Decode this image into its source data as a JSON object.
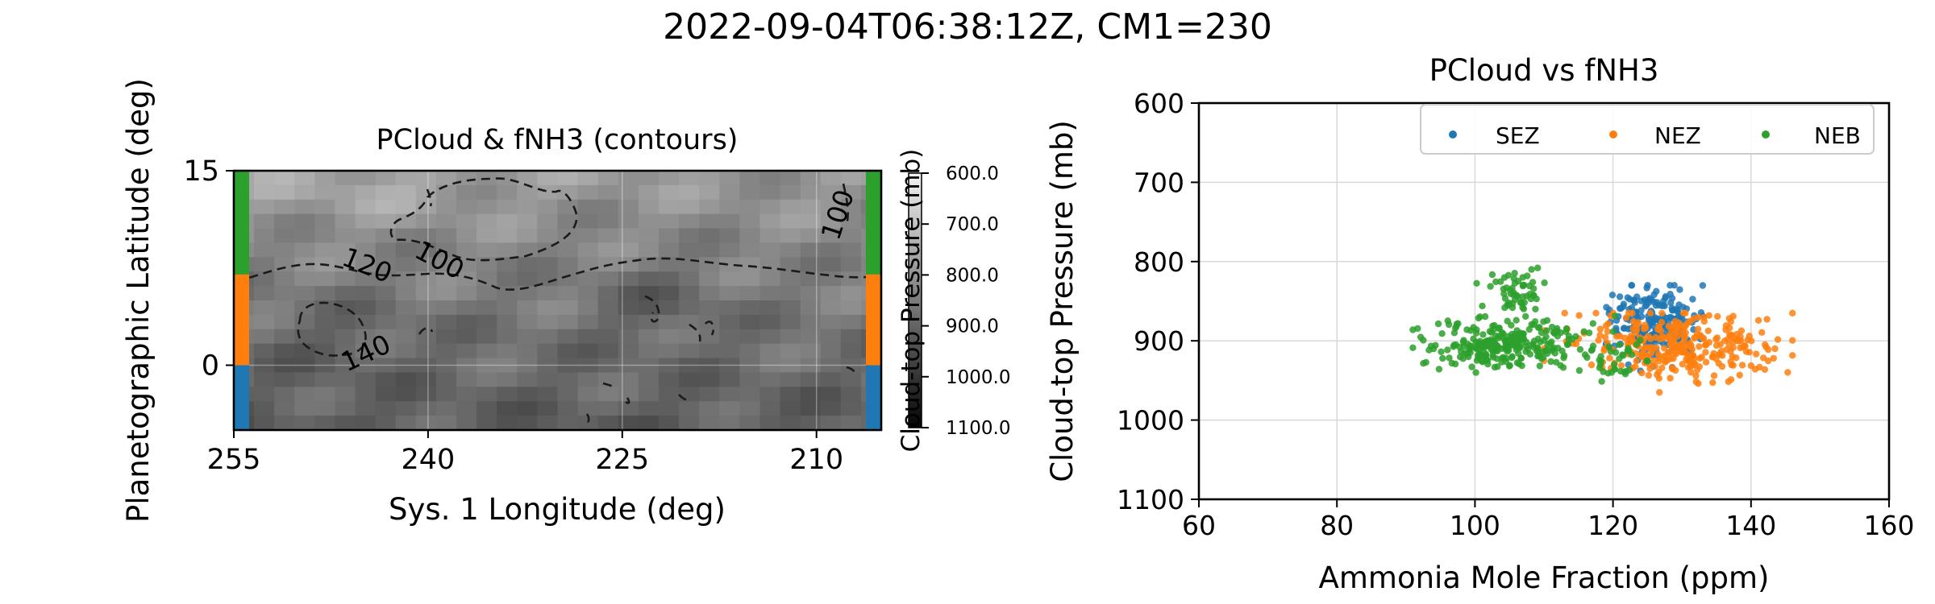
{
  "figure": {
    "title": "2022-09-04T06:38:12Z, CM1=230"
  },
  "colors": {
    "sez": "#1f77b4",
    "nez": "#ff7f0e",
    "neb": "#2ca02c",
    "grid": "#d9d9d9",
    "contour": "#1a1a1a"
  },
  "chart_data": [
    {
      "type": "heatmap",
      "title": "PCloud & fNH3 (contours)",
      "xlabel": "Sys. 1 Longitude (deg)",
      "ylabel": "Planetographic Latitude (deg)",
      "xlim": [
        255,
        205
      ],
      "ylim": [
        -5,
        15
      ],
      "xticks": [
        "255",
        "240",
        "225",
        "210"
      ],
      "yticks": [
        "15",
        "0"
      ],
      "colormap": "gray (600 mb light, 1100 mb dark)",
      "colorbar": {
        "label": "Cloud-top Pressure (mb)",
        "ticks": [
          "600.0",
          "700.0",
          "800.0",
          "900.0",
          "1000.0",
          "1100.0"
        ],
        "range": [
          600,
          1100
        ]
      },
      "contour_labels": [
        "100",
        "120",
        "140",
        "100"
      ],
      "contour_style": "dashed",
      "zone_bars": [
        {
          "zone": "NEB",
          "lat_range": [
            7,
            15
          ],
          "color": "#2ca02c"
        },
        {
          "zone": "NEZ",
          "lat_range": [
            0,
            7
          ],
          "color": "#ff7f0e"
        },
        {
          "zone": "SEZ",
          "lat_range": [
            -5,
            0
          ],
          "color": "#1f77b4"
        }
      ]
    },
    {
      "type": "scatter",
      "title": "PCloud vs fNH3",
      "xlabel": "Ammonia Mole Fraction (ppm)",
      "ylabel": "Cloud-top Pressure (mb)",
      "xlim": [
        60,
        160
      ],
      "ylim": [
        1100,
        600
      ],
      "xticks": [
        "60",
        "80",
        "100",
        "120",
        "140",
        "160"
      ],
      "yticks": [
        "600",
        "700",
        "800",
        "900",
        "1000",
        "1100"
      ],
      "grid": true,
      "legend_position": "top-right",
      "series": [
        {
          "name": "SEZ",
          "color": "#1f77b4",
          "x_range": [
            119,
            133
          ],
          "y_range": [
            830,
            950
          ],
          "x_center": 126,
          "y_center": 878
        },
        {
          "name": "NEZ",
          "color": "#ff7f0e",
          "x_range": [
            110,
            146
          ],
          "y_range": [
            865,
            965
          ],
          "x_center": 130,
          "y_center": 905
        },
        {
          "name": "NEB",
          "color": "#2ca02c",
          "x_range": [
            91,
            125
          ],
          "y_range": [
            808,
            958
          ],
          "x_center": 104,
          "y_center": 905
        }
      ]
    }
  ]
}
